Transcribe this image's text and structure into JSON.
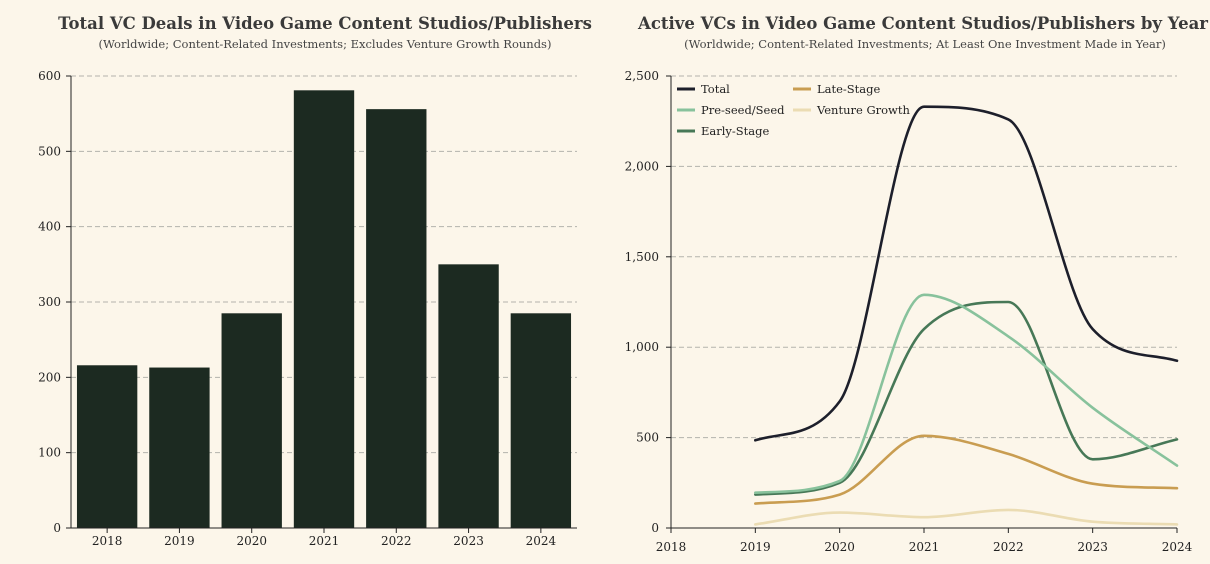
{
  "colors": {
    "background": "#fcf6ea",
    "bar": "#1c2a21",
    "grid": "#b3b3ac",
    "axis": "#222222"
  },
  "chart_data": [
    {
      "type": "bar",
      "title": "Total VC Deals in Video Game Content Studios/Publishers",
      "subtitle": "(Worldwide; Content-Related Investments; Excludes Venture Growth Rounds)",
      "xlabel": "",
      "ylabel": "",
      "categories": [
        "2018",
        "2019",
        "2020",
        "2021",
        "2022",
        "2023",
        "2024"
      ],
      "values": [
        216,
        213,
        285,
        581,
        556,
        350,
        285
      ],
      "ylim": [
        0,
        600
      ],
      "yticks": [
        0,
        100,
        200,
        300,
        400,
        500,
        600
      ],
      "ytick_labels": [
        "0",
        "100",
        "200",
        "300",
        "400",
        "500",
        "600"
      ],
      "grid": "horizontal dashed"
    },
    {
      "type": "line",
      "title": "Active VCs in Video Game Content Studios/Publishers by Year",
      "subtitle": "(Worldwide; Content-Related Investments; At Least One Investment Made in Year)",
      "xlabel": "",
      "ylabel": "",
      "x": [
        "2019",
        "2020",
        "2021",
        "2022",
        "2023",
        "2024"
      ],
      "xlim": [
        "2018",
        "2024"
      ],
      "xticks": [
        "2018",
        "2019",
        "2020",
        "2021",
        "2022",
        "2023",
        "2024"
      ],
      "ylim": [
        0,
        2500
      ],
      "yticks": [
        0,
        500,
        1000,
        1500,
        2000,
        2500
      ],
      "ytick_labels": [
        "0",
        "500",
        "1,000",
        "1,500",
        "2,000",
        "2,500"
      ],
      "grid": "horizontal dashed",
      "legend_position": "top-left",
      "series": [
        {
          "name": "Total",
          "color": "#1d1f2b",
          "values": [
            485,
            700,
            2330,
            2260,
            1100,
            925
          ]
        },
        {
          "name": "Pre-seed/Seed",
          "color": "#88c29c",
          "values": [
            195,
            260,
            1290,
            1060,
            665,
            345
          ]
        },
        {
          "name": "Early-Stage",
          "color": "#477857",
          "values": [
            185,
            250,
            1100,
            1250,
            380,
            490
          ]
        },
        {
          "name": "Late-Stage",
          "color": "#c99d51",
          "values": [
            135,
            185,
            510,
            410,
            245,
            220
          ]
        },
        {
          "name": "Venture Growth",
          "color": "#ebdcb3",
          "values": [
            20,
            85,
            60,
            100,
            35,
            20
          ]
        }
      ]
    }
  ]
}
